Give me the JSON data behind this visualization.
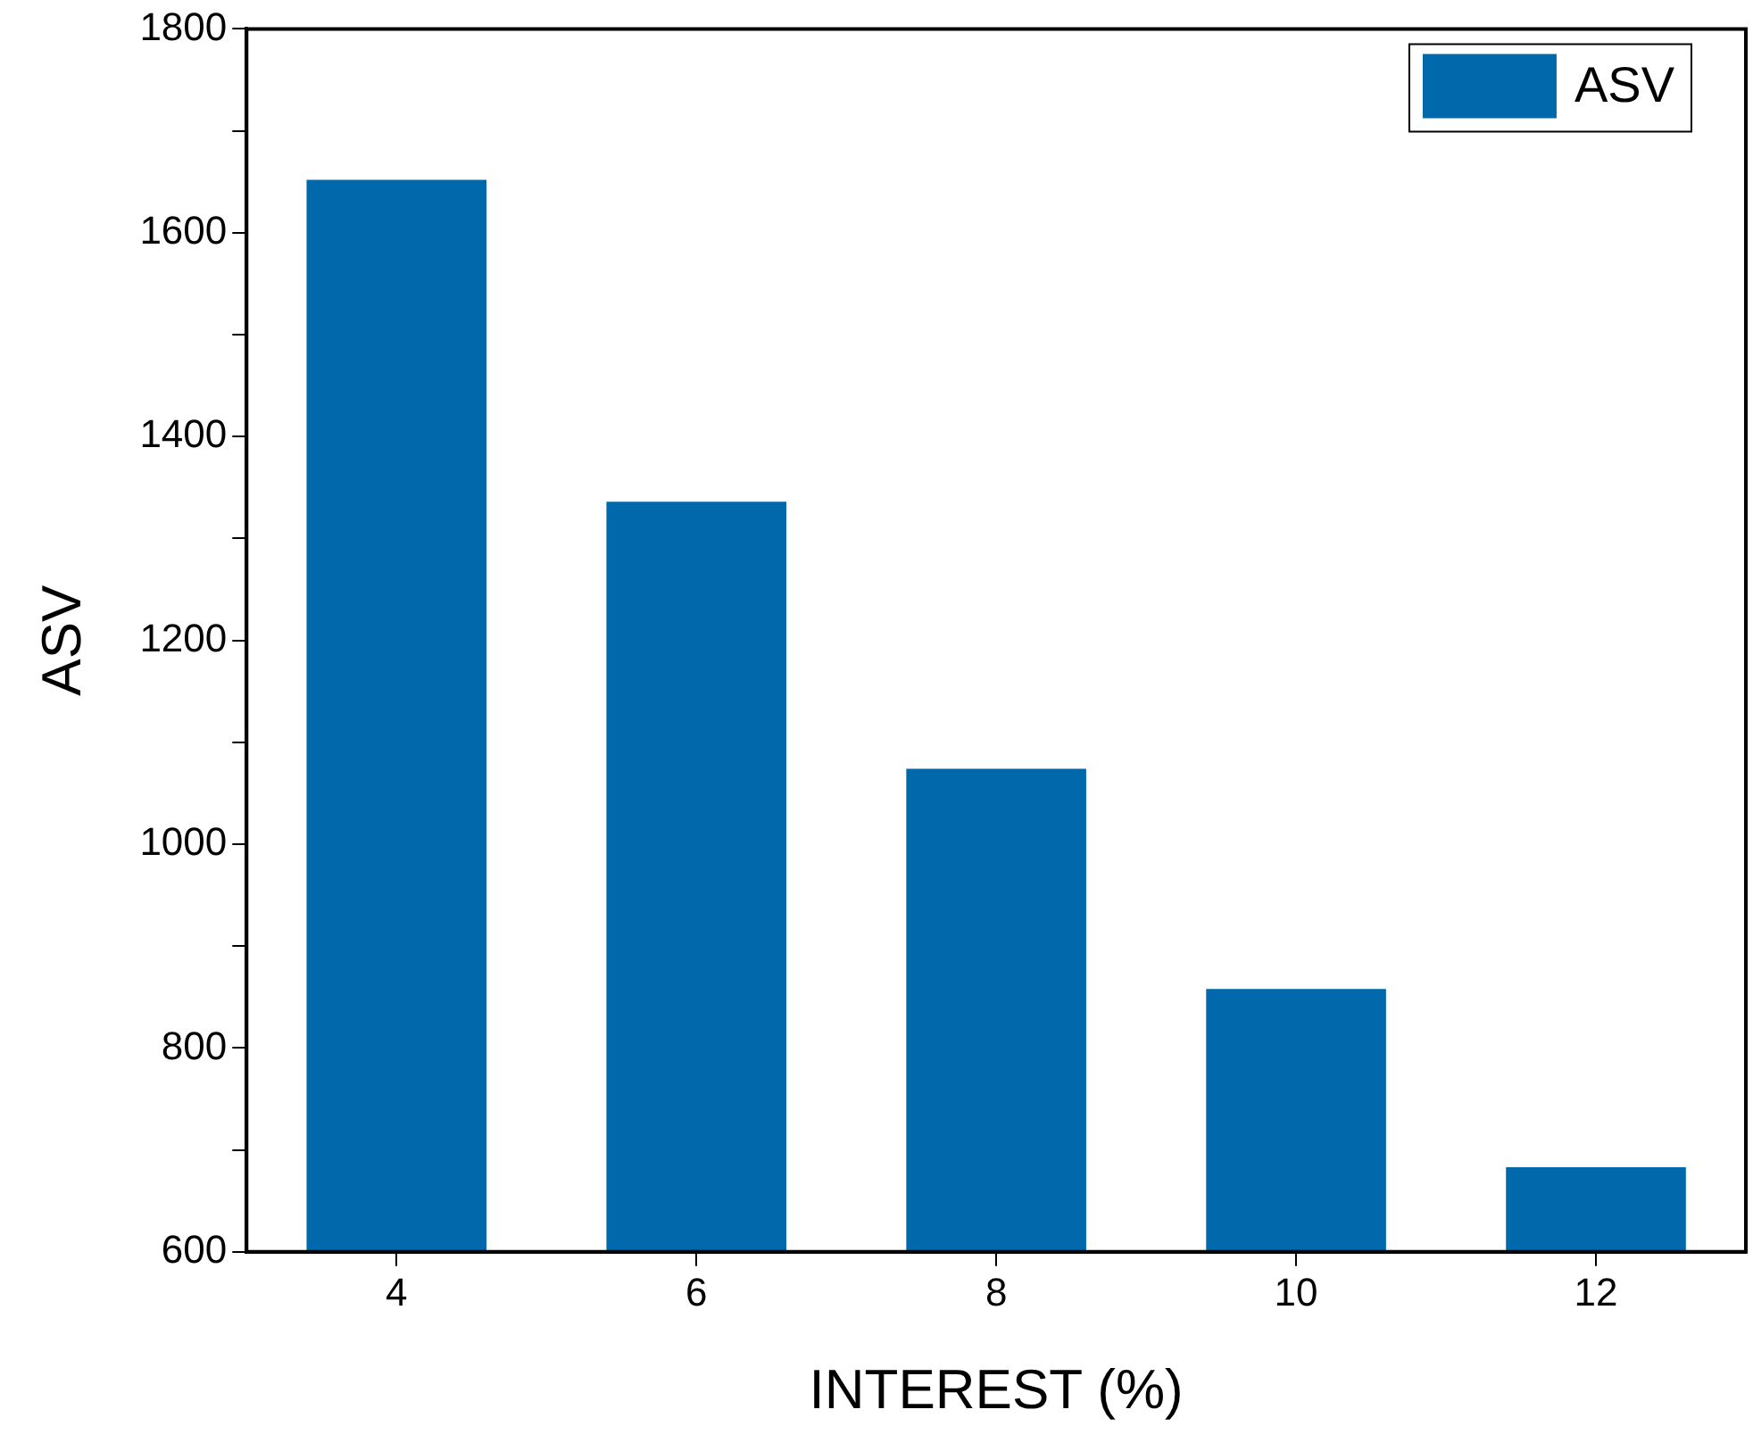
{
  "chart_data": {
    "type": "bar",
    "xlabel": "INTEREST (%)",
    "ylabel": "ASV",
    "categories": [
      "4",
      "6",
      "8",
      "10",
      "12"
    ],
    "series": [
      {
        "name": "ASV",
        "color": "#0068ab",
        "values": [
          1652,
          1336,
          1074,
          858,
          683
        ]
      }
    ],
    "ylim": [
      600,
      1800
    ],
    "yticks": [
      600,
      {
        "value": 700,
        "label": null
      },
      800,
      {
        "value": 900,
        "label": null
      },
      1000,
      {
        "value": 1100,
        "label": null
      },
      1200,
      {
        "value": 1300,
        "label": null
      },
      1400,
      {
        "value": 1500,
        "label": null
      },
      1600,
      {
        "value": 1700,
        "label": null
      },
      1800
    ],
    "grid": false,
    "legend": "top right"
  }
}
